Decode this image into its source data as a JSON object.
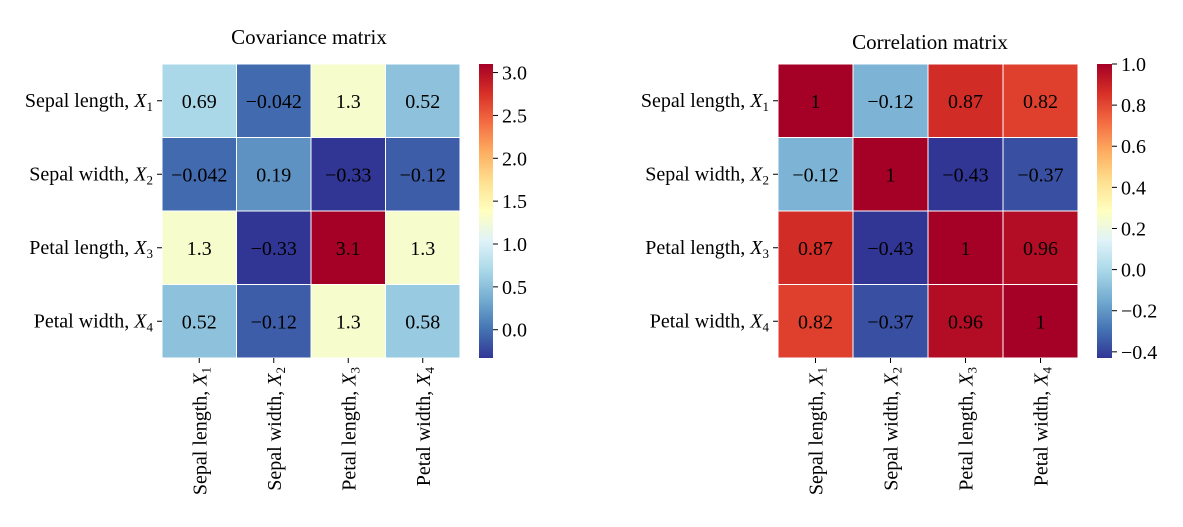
{
  "chart_data": [
    {
      "type": "heatmap",
      "title": "Covariance matrix",
      "row_labels": [
        {
          "text": "Sepal length, ",
          "var": "X",
          "sub": "1"
        },
        {
          "text": "Sepal width, ",
          "var": "X",
          "sub": "2"
        },
        {
          "text": "Petal length, ",
          "var": "X",
          "sub": "3"
        },
        {
          "text": "Petal width, ",
          "var": "X",
          "sub": "4"
        }
      ],
      "col_labels": [
        {
          "text": "Sepal length, ",
          "var": "X",
          "sub": "1"
        },
        {
          "text": "Sepal width, ",
          "var": "X",
          "sub": "2"
        },
        {
          "text": "Petal length, ",
          "var": "X",
          "sub": "3"
        },
        {
          "text": "Petal width, ",
          "var": "X",
          "sub": "4"
        }
      ],
      "values": [
        [
          0.69,
          -0.042,
          1.3,
          0.52
        ],
        [
          -0.042,
          0.19,
          -0.33,
          -0.12
        ],
        [
          1.3,
          -0.33,
          3.1,
          1.3
        ],
        [
          0.52,
          -0.12,
          1.3,
          0.58
        ]
      ],
      "labels": [
        [
          "0.69",
          "−0.042",
          "1.3",
          "0.52"
        ],
        [
          "−0.042",
          "0.19",
          "−0.33",
          "−0.12"
        ],
        [
          "1.3",
          "−0.33",
          "3.1",
          "1.3"
        ],
        [
          "0.52",
          "−0.12",
          "1.3",
          "0.58"
        ]
      ],
      "colormap": "RdYlBu_r",
      "vmin": -0.33,
      "vmax": 3.1,
      "colorbar_ticks": [
        0.0,
        0.5,
        1.0,
        1.5,
        2.0,
        2.5,
        3.0
      ],
      "colorbar_tick_labels": [
        "0.0",
        "0.5",
        "1.0",
        "1.5",
        "2.0",
        "2.5",
        "3.0"
      ],
      "cell_borders": "white"
    },
    {
      "type": "heatmap",
      "title": "Correlation matrix",
      "row_labels": [
        {
          "text": "Sepal length, ",
          "var": "X",
          "sub": "1"
        },
        {
          "text": "Sepal width, ",
          "var": "X",
          "sub": "2"
        },
        {
          "text": "Petal length, ",
          "var": "X",
          "sub": "3"
        },
        {
          "text": "Petal width, ",
          "var": "X",
          "sub": "4"
        }
      ],
      "col_labels": [
        {
          "text": "Sepal length, ",
          "var": "X",
          "sub": "1"
        },
        {
          "text": "Sepal width, ",
          "var": "X",
          "sub": "2"
        },
        {
          "text": "Petal length, ",
          "var": "X",
          "sub": "3"
        },
        {
          "text": "Petal width, ",
          "var": "X",
          "sub": "4"
        }
      ],
      "values": [
        [
          1.0,
          -0.12,
          0.87,
          0.82
        ],
        [
          -0.12,
          1.0,
          -0.43,
          -0.37
        ],
        [
          0.87,
          -0.43,
          1.0,
          0.96
        ],
        [
          0.82,
          -0.37,
          0.96,
          1.0
        ]
      ],
      "labels": [
        [
          "1",
          "−0.12",
          "0.87",
          "0.82"
        ],
        [
          "−0.12",
          "1",
          "−0.43",
          "−0.37"
        ],
        [
          "0.87",
          "−0.43",
          "1",
          "0.96"
        ],
        [
          "0.82",
          "−0.37",
          "0.96",
          "1"
        ]
      ],
      "colormap": "RdYlBu_r",
      "vmin": -0.43,
      "vmax": 1.0,
      "colorbar_ticks": [
        -0.4,
        -0.2,
        0.0,
        0.2,
        0.4,
        0.6,
        0.8,
        1.0
      ],
      "colorbar_tick_labels": [
        "−0.4",
        "−0.2",
        "0.0",
        "0.2",
        "0.4",
        "0.6",
        "0.8",
        "1.0"
      ],
      "cell_borders": "white"
    }
  ]
}
